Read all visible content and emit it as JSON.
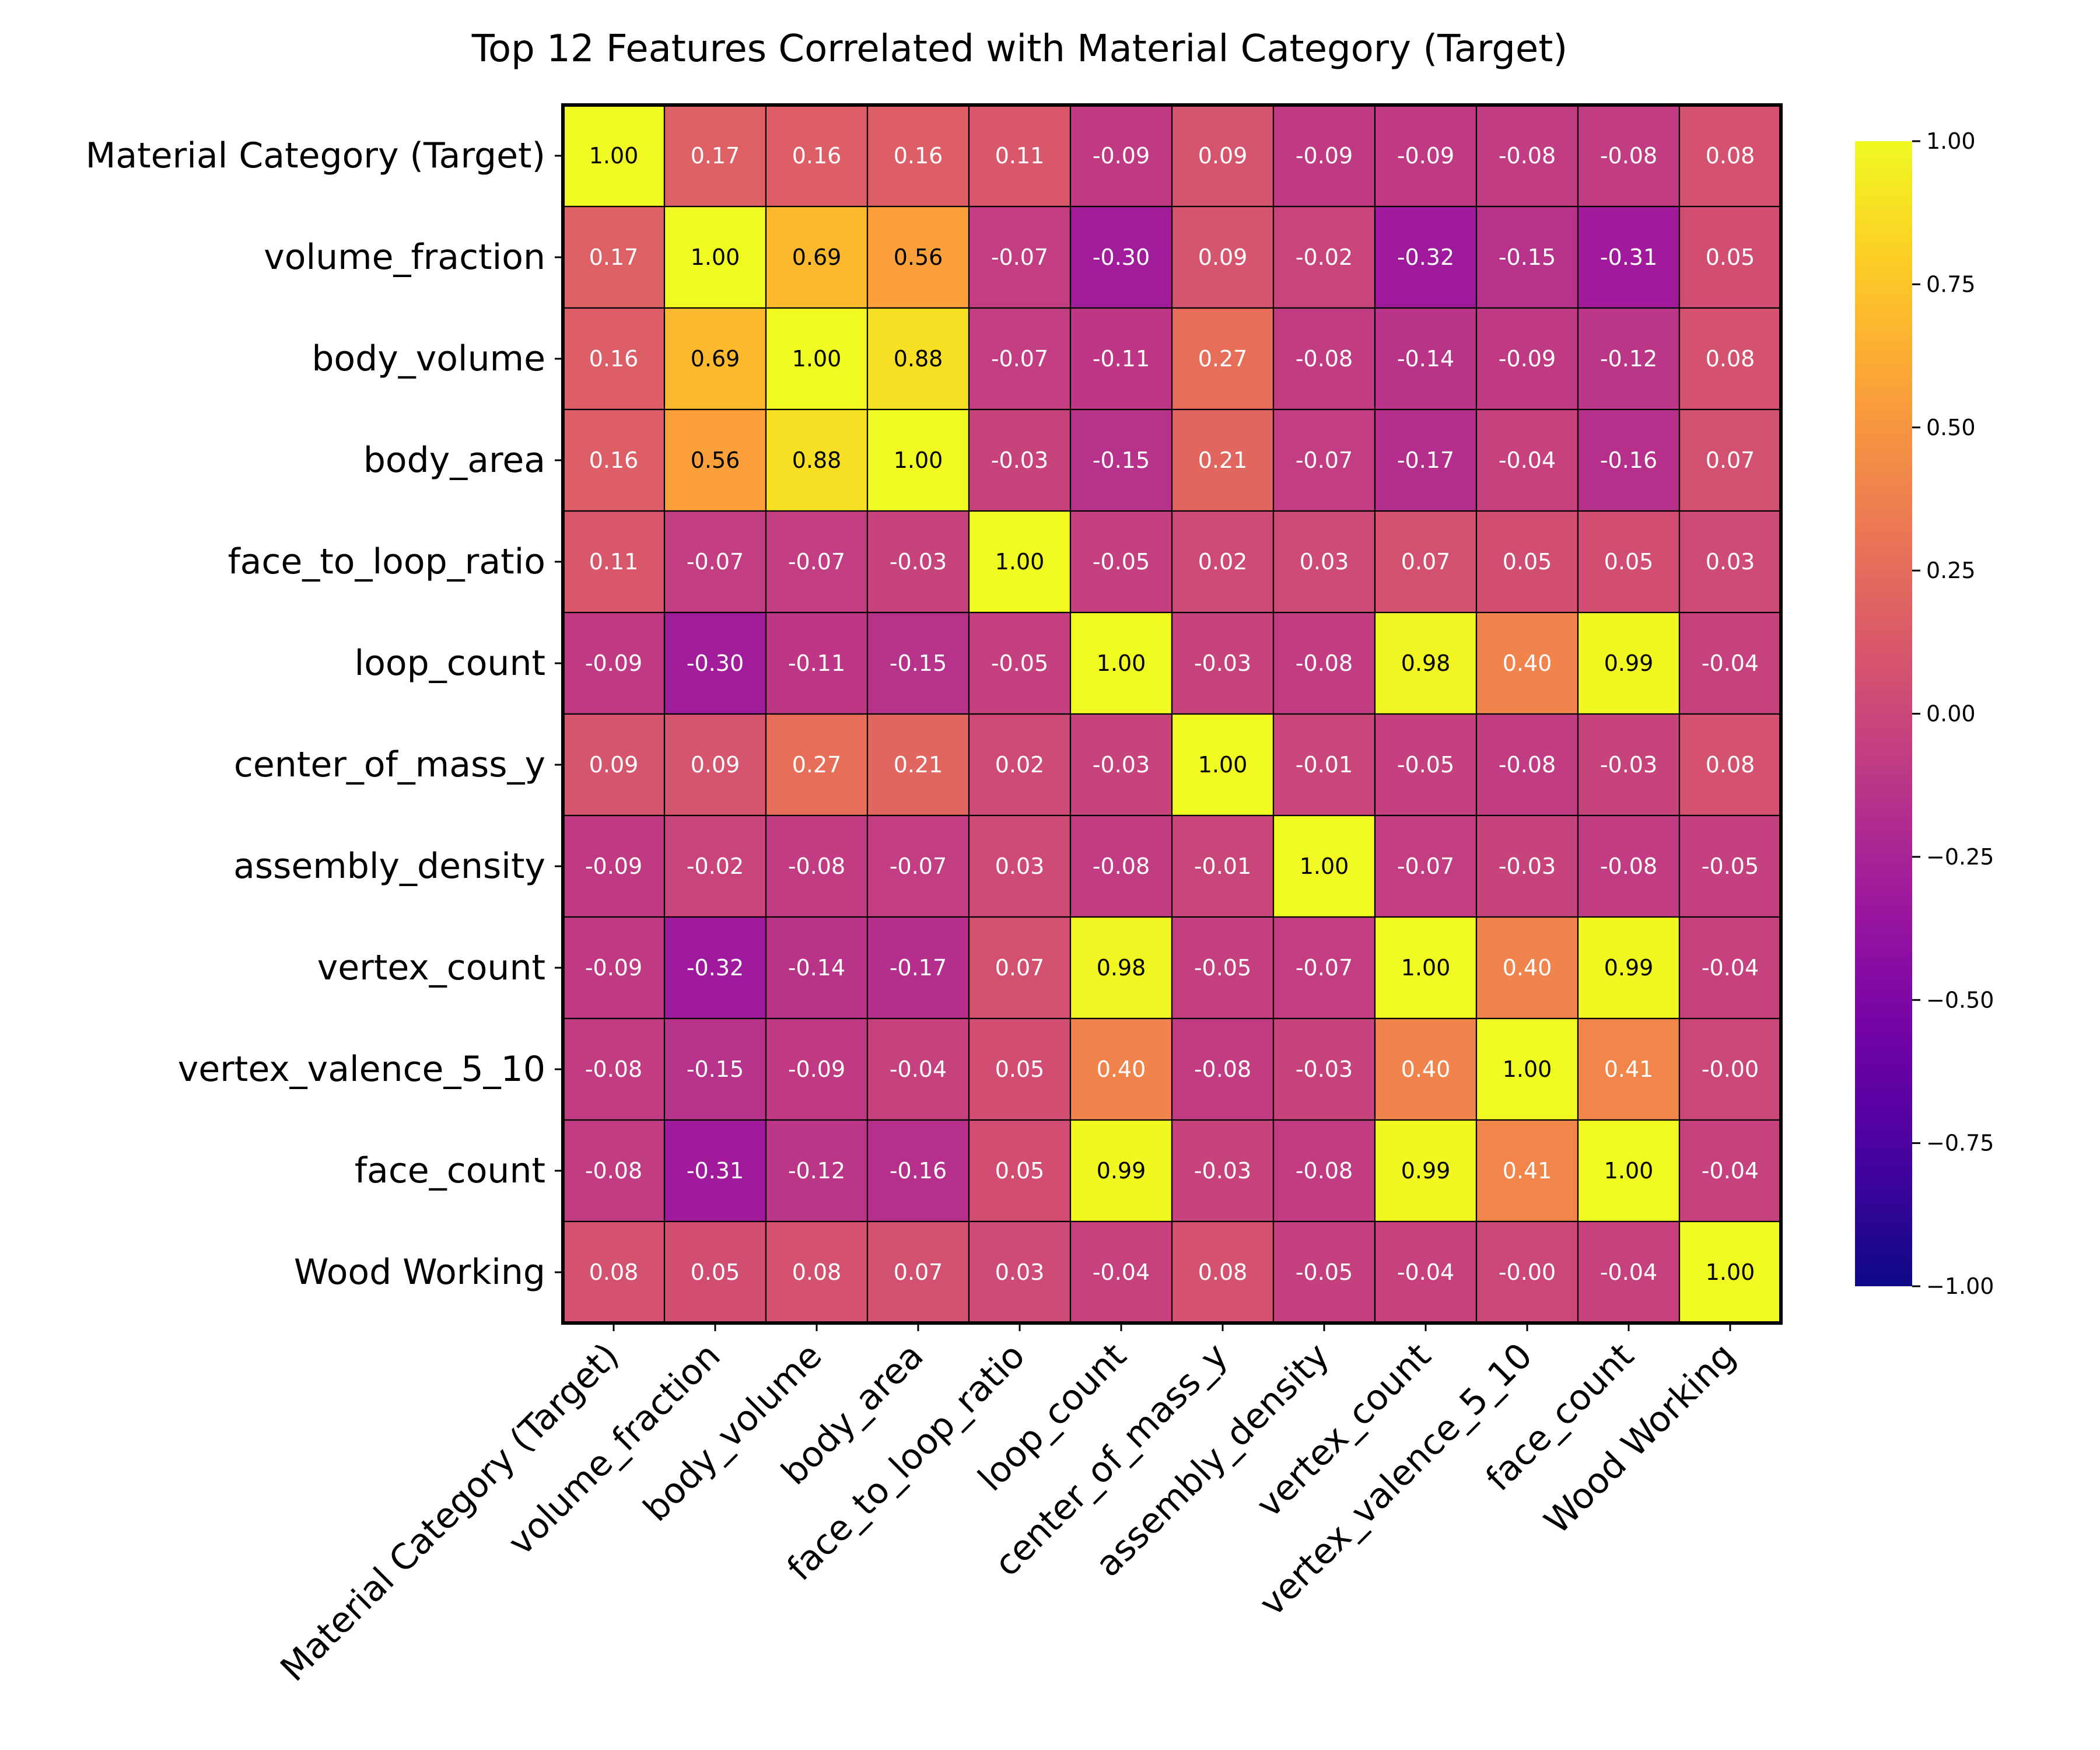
{
  "chart_data": {
    "type": "heatmap",
    "title": "Top 12 Features Correlated with Material Category (Target)",
    "labels": [
      "Material Category (Target)",
      "volume_fraction",
      "body_volume",
      "body_area",
      "face_to_loop_ratio",
      "loop_count",
      "center_of_mass_y",
      "assembly_density",
      "vertex_count",
      "vertex_valence_5_10",
      "face_count",
      "Wood Working"
    ],
    "matrix": [
      [
        1.0,
        0.17,
        0.16,
        0.16,
        0.11,
        -0.09,
        0.09,
        -0.09,
        -0.09,
        -0.08,
        -0.08,
        0.08
      ],
      [
        0.17,
        1.0,
        0.69,
        0.56,
        -0.07,
        -0.3,
        0.09,
        -0.02,
        -0.32,
        -0.15,
        -0.31,
        0.05
      ],
      [
        0.16,
        0.69,
        1.0,
        0.88,
        -0.07,
        -0.11,
        0.27,
        -0.08,
        -0.14,
        -0.09,
        -0.12,
        0.08
      ],
      [
        0.16,
        0.56,
        0.88,
        1.0,
        -0.03,
        -0.15,
        0.21,
        -0.07,
        -0.17,
        -0.04,
        -0.16,
        0.07
      ],
      [
        0.11,
        -0.07,
        -0.07,
        -0.03,
        1.0,
        -0.05,
        0.02,
        0.03,
        0.07,
        0.05,
        0.05,
        0.03
      ],
      [
        -0.09,
        -0.3,
        -0.11,
        -0.15,
        -0.05,
        1.0,
        -0.03,
        -0.08,
        0.98,
        0.4,
        0.99,
        -0.04
      ],
      [
        0.09,
        0.09,
        0.27,
        0.21,
        0.02,
        -0.03,
        1.0,
        -0.01,
        -0.05,
        -0.08,
        -0.03,
        0.08
      ],
      [
        -0.09,
        -0.02,
        -0.08,
        -0.07,
        0.03,
        -0.08,
        -0.01,
        1.0,
        -0.07,
        -0.03,
        -0.08,
        -0.05
      ],
      [
        -0.09,
        -0.32,
        -0.14,
        -0.17,
        0.07,
        0.98,
        -0.05,
        -0.07,
        1.0,
        0.4,
        0.99,
        -0.04
      ],
      [
        -0.08,
        -0.15,
        -0.09,
        -0.04,
        0.05,
        0.4,
        -0.08,
        -0.03,
        0.4,
        1.0,
        0.41,
        -0.0
      ],
      [
        -0.08,
        -0.31,
        -0.12,
        -0.16,
        0.05,
        0.99,
        -0.03,
        -0.08,
        0.99,
        0.41,
        1.0,
        -0.04
      ],
      [
        0.08,
        0.05,
        0.08,
        0.07,
        0.03,
        -0.04,
        0.08,
        -0.05,
        -0.04,
        -0.0,
        -0.04,
        1.0
      ]
    ],
    "value_format": "2 decimals",
    "colormap": "plasma",
    "vmin": -1.0,
    "vmax": 1.0,
    "colorbar_ticks": [
      {
        "value": 1.0,
        "label": "1.00"
      },
      {
        "value": 0.75,
        "label": "0.75"
      },
      {
        "value": 0.5,
        "label": "0.50"
      },
      {
        "value": 0.25,
        "label": "0.25"
      },
      {
        "value": 0.0,
        "label": "0.00"
      },
      {
        "value": -0.25,
        "label": "−0.25"
      },
      {
        "value": -0.5,
        "label": "−0.50"
      },
      {
        "value": -0.75,
        "label": "−0.75"
      },
      {
        "value": -1.0,
        "label": "−1.00"
      }
    ],
    "colorbar_position": "right"
  }
}
